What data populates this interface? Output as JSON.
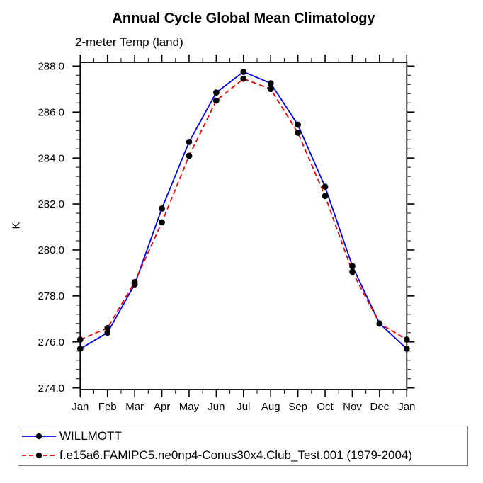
{
  "chart_data": {
    "type": "line",
    "title": "Annual Cycle Global Mean Climatology",
    "subtitle": "2-meter Temp (land)",
    "ylabel": "K",
    "xlabel": "",
    "categories": [
      "Jan",
      "Feb",
      "Mar",
      "Apr",
      "May",
      "Jun",
      "Jul",
      "Aug",
      "Sep",
      "Oct",
      "Nov",
      "Dec",
      "Jan"
    ],
    "yticks": [
      274.0,
      276.0,
      278.0,
      280.0,
      282.0,
      284.0,
      286.0,
      288.0
    ],
    "ylim": [
      273.9,
      288.2
    ],
    "y_minor_step": 0.4,
    "x_minor_step": 0.5,
    "grid": false,
    "legend_position": "bottom-left-box",
    "marker_color": "#000000",
    "axis_color": "#000000",
    "series": [
      {
        "name": "WILLMOTT",
        "color": "#0000ee",
        "style": "solid",
        "values": [
          275.7,
          276.4,
          278.5,
          281.8,
          284.7,
          286.85,
          287.75,
          287.25,
          285.45,
          282.75,
          279.3,
          276.8,
          275.7
        ]
      },
      {
        "name": "f.e15a6.FAMIPC5.ne0np4-Conus30x4.Club_Test.001 (1979-2004)",
        "color": "#ee0000",
        "style": "dashed",
        "values": [
          276.1,
          276.6,
          278.6,
          281.2,
          284.1,
          286.5,
          287.45,
          287.0,
          285.1,
          282.35,
          279.05,
          276.8,
          276.1
        ]
      }
    ]
  }
}
